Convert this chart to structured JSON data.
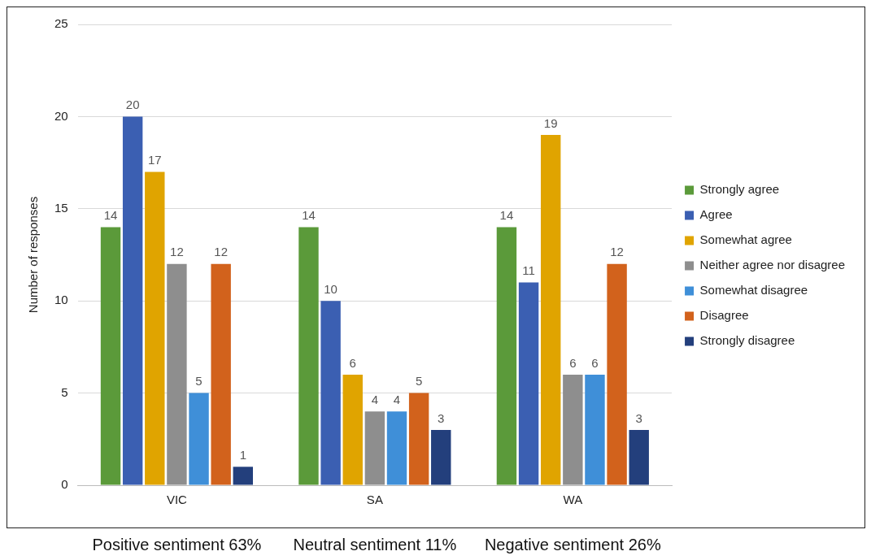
{
  "chart_data": {
    "type": "bar",
    "categories": [
      "VIC",
      "SA",
      "WA"
    ],
    "ylabel": "Number of responses",
    "series": [
      {
        "name": "Strongly agree",
        "color": "#5b9a3a",
        "values": [
          14,
          14,
          14
        ]
      },
      {
        "name": "Agree",
        "color": "#3b5fb2",
        "values": [
          20,
          10,
          11
        ]
      },
      {
        "name": "Somewhat agree",
        "color": "#e0a400",
        "values": [
          17,
          6,
          19
        ]
      },
      {
        "name": "Neither agree nor disagree",
        "color": "#8e8e8e",
        "values": [
          12,
          4,
          6
        ]
      },
      {
        "name": "Somewhat disagree",
        "color": "#3f8fd8",
        "values": [
          5,
          4,
          6
        ]
      },
      {
        "name": "Disagree",
        "color": "#d2621c",
        "values": [
          12,
          5,
          12
        ]
      },
      {
        "name": "Strongly disagree",
        "color": "#233f7c",
        "values": [
          1,
          3,
          3
        ]
      }
    ],
    "ylim": [
      0,
      25
    ],
    "yticks": [
      0,
      5,
      10,
      15,
      20,
      25
    ],
    "grid": "y",
    "legend": "right",
    "data_labels": true,
    "annotations": [
      "Positive sentiment 63%",
      "Neutral sentiment 11%",
      "Negative sentiment 26%"
    ]
  }
}
